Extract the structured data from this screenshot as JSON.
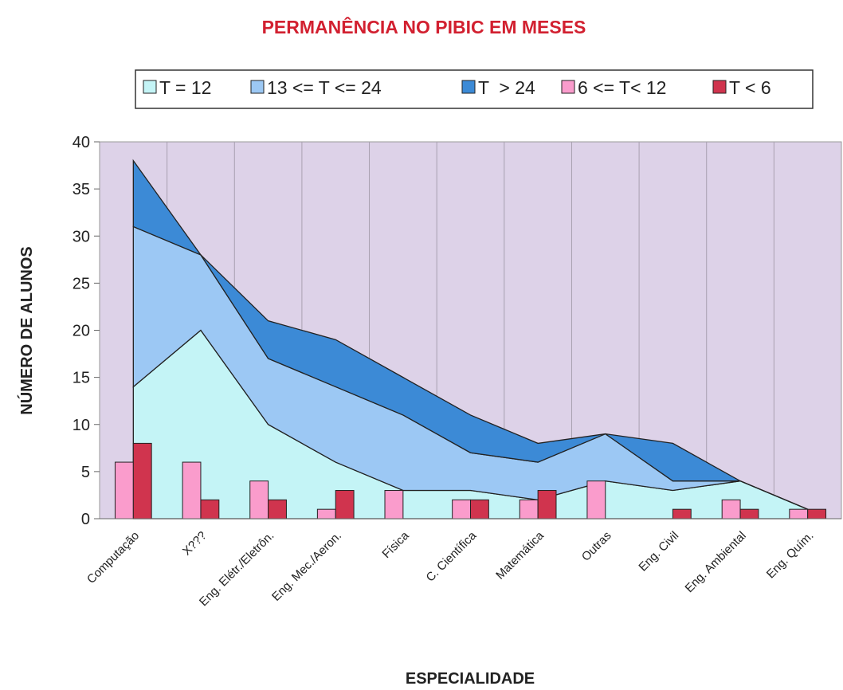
{
  "chart_data": {
    "type": "combo",
    "title": "PERMANÊNCIA NO PIBIC EM MESES",
    "x_label": "ESPECIALIDADE",
    "y_label": "NÚMERO DE ALUNOS",
    "categories": [
      "Computação",
      "X???",
      "Eng. Elétr./Eletrôn.",
      "Eng. Mec./Aeron.",
      "Física",
      "C. Científica",
      "Matemática",
      "Outras",
      "Eng. Civil",
      "Eng. Ambiental",
      "Eng. Quím."
    ],
    "series": [
      {
        "name": "T = 12",
        "type": "area",
        "color": "#c4f4f6",
        "values": [
          14,
          20,
          10,
          6,
          3,
          3,
          2,
          4,
          3,
          4,
          1
        ]
      },
      {
        "name": "13 <= T <= 24",
        "type": "area",
        "color": "#9cc8f4",
        "values": [
          17,
          8,
          7,
          8,
          8,
          4,
          4,
          5,
          1,
          0,
          0
        ]
      },
      {
        "name": "T  > 24",
        "type": "area",
        "color": "#3c8ad6",
        "values": [
          7,
          0,
          4,
          5,
          4,
          4,
          2,
          0,
          4,
          0,
          0
        ]
      },
      {
        "name": "6 <= T< 12",
        "type": "bar",
        "color": "#fa9ccc",
        "values": [
          6,
          6,
          4,
          1,
          3,
          2,
          2,
          4,
          0,
          2,
          1
        ]
      },
      {
        "name": "T < 6",
        "type": "bar",
        "color": "#d0344e",
        "values": [
          8,
          2,
          2,
          3,
          0,
          2,
          3,
          0,
          1,
          1,
          1
        ]
      }
    ],
    "ylim": [
      0,
      40
    ],
    "yticks": [
      0,
      5,
      10,
      15,
      20,
      25,
      30,
      35,
      40
    ],
    "stacked_areas": true,
    "grid": true,
    "legend": "top"
  }
}
